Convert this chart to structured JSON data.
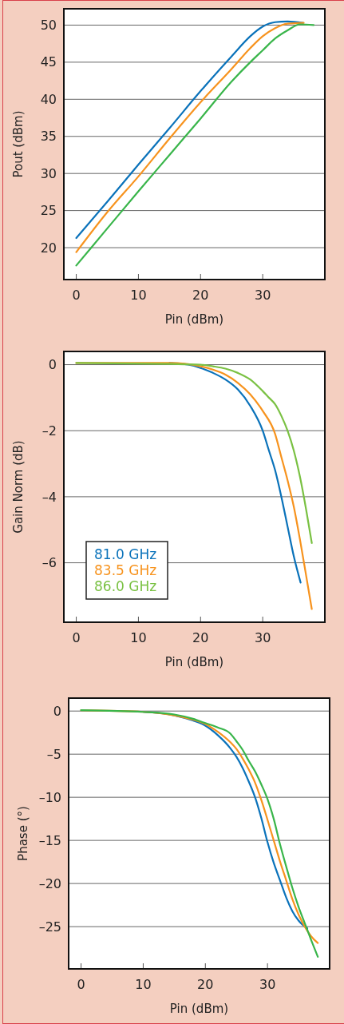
{
  "chart_data": [
    {
      "type": "line",
      "xlabel": "Pin (dBm)",
      "ylabel": "Pout (dBm)",
      "xlim": [
        -2,
        40
      ],
      "xticks": [
        0,
        10,
        20,
        30
      ],
      "ylim": [
        15.7,
        52.2
      ],
      "yticks": [
        20,
        25,
        30,
        35,
        40,
        45,
        50
      ],
      "grid": "y",
      "series": [
        {
          "color": "#0a72ba",
          "x": [
            0,
            5,
            10,
            15,
            20,
            25,
            28,
            30,
            32,
            34,
            36.5
          ],
          "values": [
            21.3,
            26.2,
            31.2,
            36.1,
            41.1,
            45.8,
            48.5,
            49.8,
            50.4,
            50.5,
            50.3
          ]
        },
        {
          "color": "#f7931e",
          "x": [
            0,
            5,
            10,
            15,
            20,
            25,
            28,
            30,
            32,
            34,
            36.6
          ],
          "values": [
            19.4,
            24.8,
            29.6,
            34.7,
            39.6,
            44.1,
            46.9,
            48.5,
            49.6,
            50.2,
            50.3
          ]
        },
        {
          "color": "#39b54a",
          "x": [
            0,
            5,
            10,
            15,
            20,
            25,
            28,
            30,
            32,
            34,
            36,
            38.2
          ],
          "values": [
            17.6,
            22.6,
            27.6,
            32.5,
            37.4,
            42.4,
            45,
            46.6,
            48.2,
            49.3,
            50.1,
            50
          ]
        }
      ]
    },
    {
      "type": "line",
      "xlabel": "Pin (dBm)",
      "ylabel": "Gain Norm (dB)",
      "xlim": [
        -2,
        40
      ],
      "xticks": [
        0,
        10,
        20,
        30
      ],
      "ylim": [
        -7.8,
        0.4
      ],
      "yticks": [
        0,
        {
          "value": -2,
          "label": "–2"
        },
        {
          "value": -4,
          "label": "–4"
        },
        {
          "value": -6,
          "label": "–6"
        }
      ],
      "grid": "y",
      "legend": "bottom left",
      "series": [
        {
          "name": "81.0 GHz",
          "color": "#0a72ba",
          "x": [
            15,
            18,
            20,
            22,
            24,
            26,
            28,
            30,
            31,
            32,
            33,
            34,
            35,
            36.1
          ],
          "values": [
            0.05,
            0,
            -0.1,
            -0.25,
            -0.45,
            -0.75,
            -1.25,
            -2,
            -2.6,
            -3.2,
            -4,
            -4.9,
            -5.8,
            -6.6
          ]
        },
        {
          "name": "83.5 GHz",
          "color": "#f7931e",
          "x": [
            0,
            10,
            15,
            20,
            22,
            24,
            26,
            28,
            30,
            32,
            33,
            34,
            35,
            36,
            37,
            37.9
          ],
          "values": [
            0.05,
            0.05,
            0.05,
            -0.05,
            -0.15,
            -0.3,
            -0.55,
            -0.9,
            -1.4,
            -2.1,
            -2.8,
            -3.5,
            -4.3,
            -5.3,
            -6.4,
            -7.4
          ]
        },
        {
          "name": "86.0 GHz",
          "color": "#7ac143",
          "x": [
            0,
            15,
            20,
            22,
            24,
            26,
            28,
            30,
            31,
            32,
            33,
            34,
            35,
            36,
            37,
            37.9
          ],
          "values": [
            0.05,
            0.02,
            0,
            -0.05,
            -0.12,
            -0.25,
            -0.45,
            -0.8,
            -1,
            -1.2,
            -1.55,
            -2,
            -2.6,
            -3.4,
            -4.4,
            -5.4
          ]
        }
      ]
    },
    {
      "type": "line",
      "xlabel": "Pin (dBm)",
      "ylabel": "Phase (°)",
      "xlim": [
        -2,
        40
      ],
      "xticks": [
        0,
        10,
        20,
        30
      ],
      "ylim": [
        -29.9,
        1.5
      ],
      "yticks": [
        0,
        {
          "value": -5,
          "label": "–5"
        },
        {
          "value": -10,
          "label": "–10"
        },
        {
          "value": -15,
          "label": "–15"
        },
        {
          "value": -20,
          "label": "–20"
        },
        {
          "value": -25,
          "label": "–25"
        }
      ],
      "grid": "y",
      "series": [
        {
          "color": "#0a72ba",
          "x": [
            10,
            15,
            18,
            20,
            22,
            24,
            25,
            26,
            27,
            28,
            29,
            30,
            31,
            32,
            33,
            34,
            35,
            36.4
          ],
          "values": [
            -0.1,
            -0.5,
            -1.1,
            -1.7,
            -2.8,
            -4.3,
            -5.3,
            -6.6,
            -8.2,
            -10,
            -12.4,
            -15.2,
            -17.6,
            -19.6,
            -21.6,
            -23.2,
            -24.3,
            -25.2
          ]
        },
        {
          "color": "#f7931e",
          "x": [
            0,
            10,
            15,
            18,
            20,
            22,
            24,
            25,
            26,
            27,
            28,
            29,
            30,
            31,
            32,
            33,
            34,
            35,
            36,
            37,
            38.1
          ],
          "values": [
            0.1,
            -0.1,
            -0.5,
            -1,
            -1.5,
            -2.4,
            -3.6,
            -4.4,
            -5.5,
            -6.8,
            -8.3,
            -10.3,
            -12.6,
            -15,
            -17.4,
            -19.6,
            -21.8,
            -23.6,
            -25,
            -26.1,
            -26.9
          ]
        },
        {
          "color": "#39b54a",
          "x": [
            0,
            10,
            15,
            18,
            20,
            22,
            24,
            25,
            26,
            27,
            28,
            29,
            30,
            31,
            32,
            33,
            34,
            35,
            36,
            37,
            38.1
          ],
          "values": [
            0.1,
            -0.1,
            -0.4,
            -0.9,
            -1.4,
            -1.9,
            -2.6,
            -3.5,
            -4.5,
            -5.8,
            -7,
            -8.5,
            -10.2,
            -12.5,
            -15.4,
            -18,
            -20.5,
            -22.7,
            -24.6,
            -26.5,
            -28.5
          ]
        }
      ]
    }
  ]
}
